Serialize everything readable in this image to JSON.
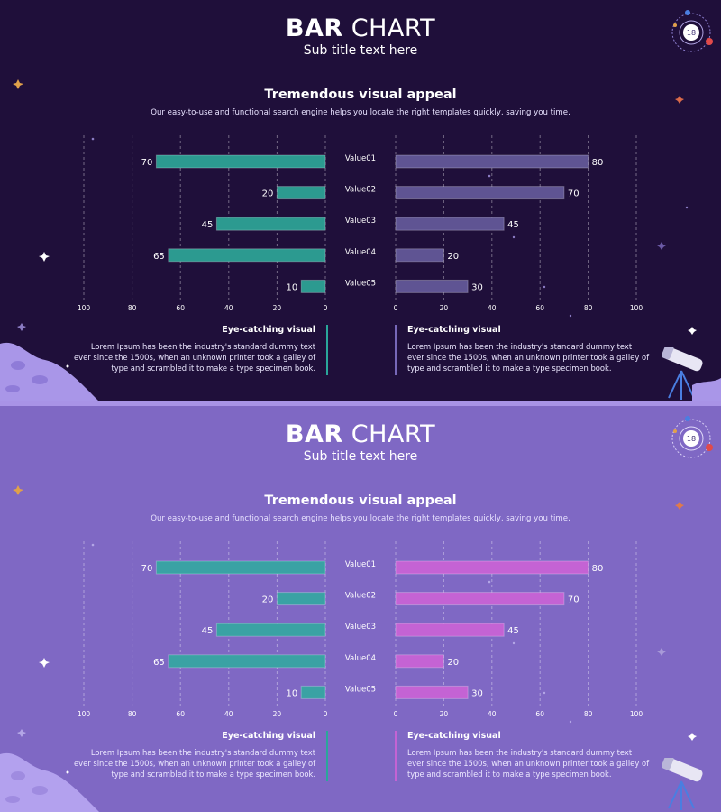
{
  "slides": [
    {
      "theme": "dark",
      "title_bold": "BAR",
      "title_rest": " CHART",
      "subtitle": "Sub title text here",
      "heading": "Tremendous visual appeal",
      "description": "Our easy-to-use and functional search engine helps you locate the right templates quickly, saving you time.",
      "badge_number": "18",
      "colors": {
        "background": "#1f0f3a",
        "left_bar": "#2c9a90",
        "right_bar": "#5f5493",
        "left_note_accent": "#2aa69a",
        "right_note_accent": "#7768b8"
      },
      "notes": [
        {
          "title": "Eye-catching visual",
          "text": "Lorem Ipsum has been the industry's standard dummy text ever since the 1500s, when an unknown printer took a galley of type and scrambled it to make a type specimen book."
        },
        {
          "title": "Eye-catching visual",
          "text": "Lorem Ipsum has been the industry's standard dummy text ever since the 1500s, when an unknown printer took a galley of type and scrambled it to make a type specimen book."
        }
      ]
    },
    {
      "theme": "light",
      "title_bold": "BAR",
      "title_rest": " CHART",
      "subtitle": "Sub title text here",
      "heading": "Tremendous visual appeal",
      "description": "Our easy-to-use and functional search engine helps you locate the right templates quickly, saving you time.",
      "badge_number": "18",
      "colors": {
        "background": "#7f68c4",
        "left_bar": "#3aa2a4",
        "right_bar": "#c463d4",
        "left_note_accent": "#2aa69a",
        "right_note_accent": "#c463d4"
      },
      "notes": [
        {
          "title": "Eye-catching visual",
          "text": "Lorem Ipsum has been the industry's standard dummy text ever since the 1500s, when an unknown printer took a galley of type and scrambled it to make a type specimen book."
        },
        {
          "title": "Eye-catching visual",
          "text": "Lorem Ipsum has been the industry's standard dummy text ever since the 1500s, when an unknown printer took a galley of type and scrambled it to make a type specimen book."
        }
      ]
    }
  ],
  "chart_data": [
    {
      "type": "bar",
      "orientation": "horizontal-butterfly",
      "categories": [
        "Value01",
        "Value02",
        "Value03",
        "Value04",
        "Value05"
      ],
      "series": [
        {
          "name": "left",
          "values": [
            70,
            20,
            45,
            65,
            10
          ]
        },
        {
          "name": "right",
          "values": [
            80,
            70,
            45,
            20,
            30
          ]
        }
      ],
      "left_ticks": [
        "100",
        "80",
        "60",
        "40",
        "20",
        "0"
      ],
      "right_ticks": [
        "0",
        "20",
        "40",
        "60",
        "80",
        "100"
      ],
      "xlim": [
        0,
        100
      ],
      "grid": true
    },
    {
      "type": "bar",
      "orientation": "horizontal-butterfly",
      "categories": [
        "Value01",
        "Value02",
        "Value03",
        "Value04",
        "Value05"
      ],
      "series": [
        {
          "name": "left",
          "values": [
            70,
            20,
            45,
            65,
            10
          ]
        },
        {
          "name": "right",
          "values": [
            80,
            70,
            45,
            20,
            30
          ]
        }
      ],
      "left_ticks": [
        "100",
        "80",
        "60",
        "40",
        "20",
        "0"
      ],
      "right_ticks": [
        "0",
        "20",
        "40",
        "60",
        "80",
        "100"
      ],
      "xlim": [
        0,
        100
      ],
      "grid": true
    }
  ]
}
